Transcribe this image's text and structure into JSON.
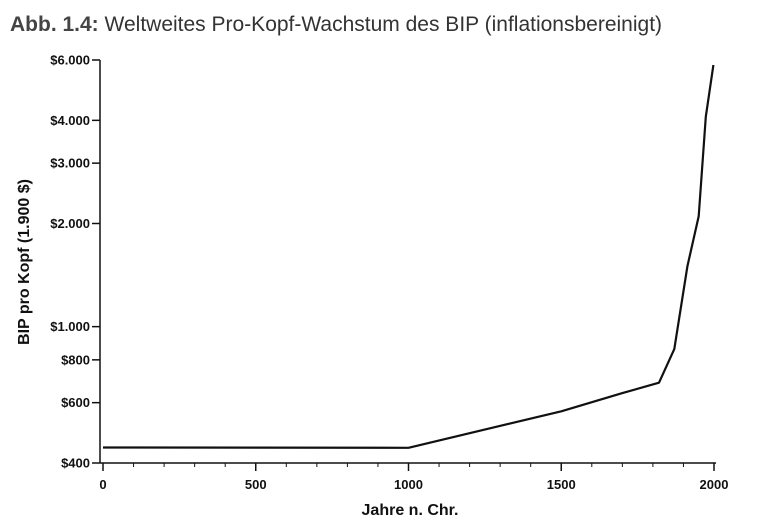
{
  "figure": {
    "label": "Abb. 1.4:",
    "title": "Weltweites Pro-Kopf-Wachstum des BIP (inflationsbereinigt)"
  },
  "chart_data": {
    "type": "line",
    "title": "Weltweites Pro-Kopf-Wachstum des BIP (inflationsbereinigt)",
    "xlabel": "Jahre n. Chr.",
    "ylabel": "BIP pro Kopf (1.900 $)",
    "xlim": [
      0,
      2000
    ],
    "ylim": [
      400,
      6000
    ],
    "yscale": "log",
    "x_ticks": [
      {
        "value": 0,
        "label": "0"
      },
      {
        "value": 500,
        "label": "500"
      },
      {
        "value": 1000,
        "label": "1000"
      },
      {
        "value": 1500,
        "label": "1500"
      },
      {
        "value": 2000,
        "label": "2000"
      }
    ],
    "y_ticks": [
      {
        "value": 400,
        "label": "$400"
      },
      {
        "value": 600,
        "label": "$600"
      },
      {
        "value": 800,
        "label": "$800"
      },
      {
        "value": 1000,
        "label": "$1.000"
      },
      {
        "value": 2000,
        "label": "$2.000"
      },
      {
        "value": 3000,
        "label": "$3.000"
      },
      {
        "value": 4000,
        "label": "$4.000"
      },
      {
        "value": 6000,
        "label": "$6.000"
      }
    ],
    "series": [
      {
        "name": "BIP pro Kopf",
        "x": [
          0,
          1000,
          1500,
          1700,
          1820,
          1870,
          1913,
          1950,
          1973,
          1998
        ],
        "y": [
          444,
          443,
          566,
          640,
          686,
          860,
          1500,
          2100,
          4100,
          5800
        ]
      }
    ],
    "grid": false,
    "line_color": "#111111"
  }
}
